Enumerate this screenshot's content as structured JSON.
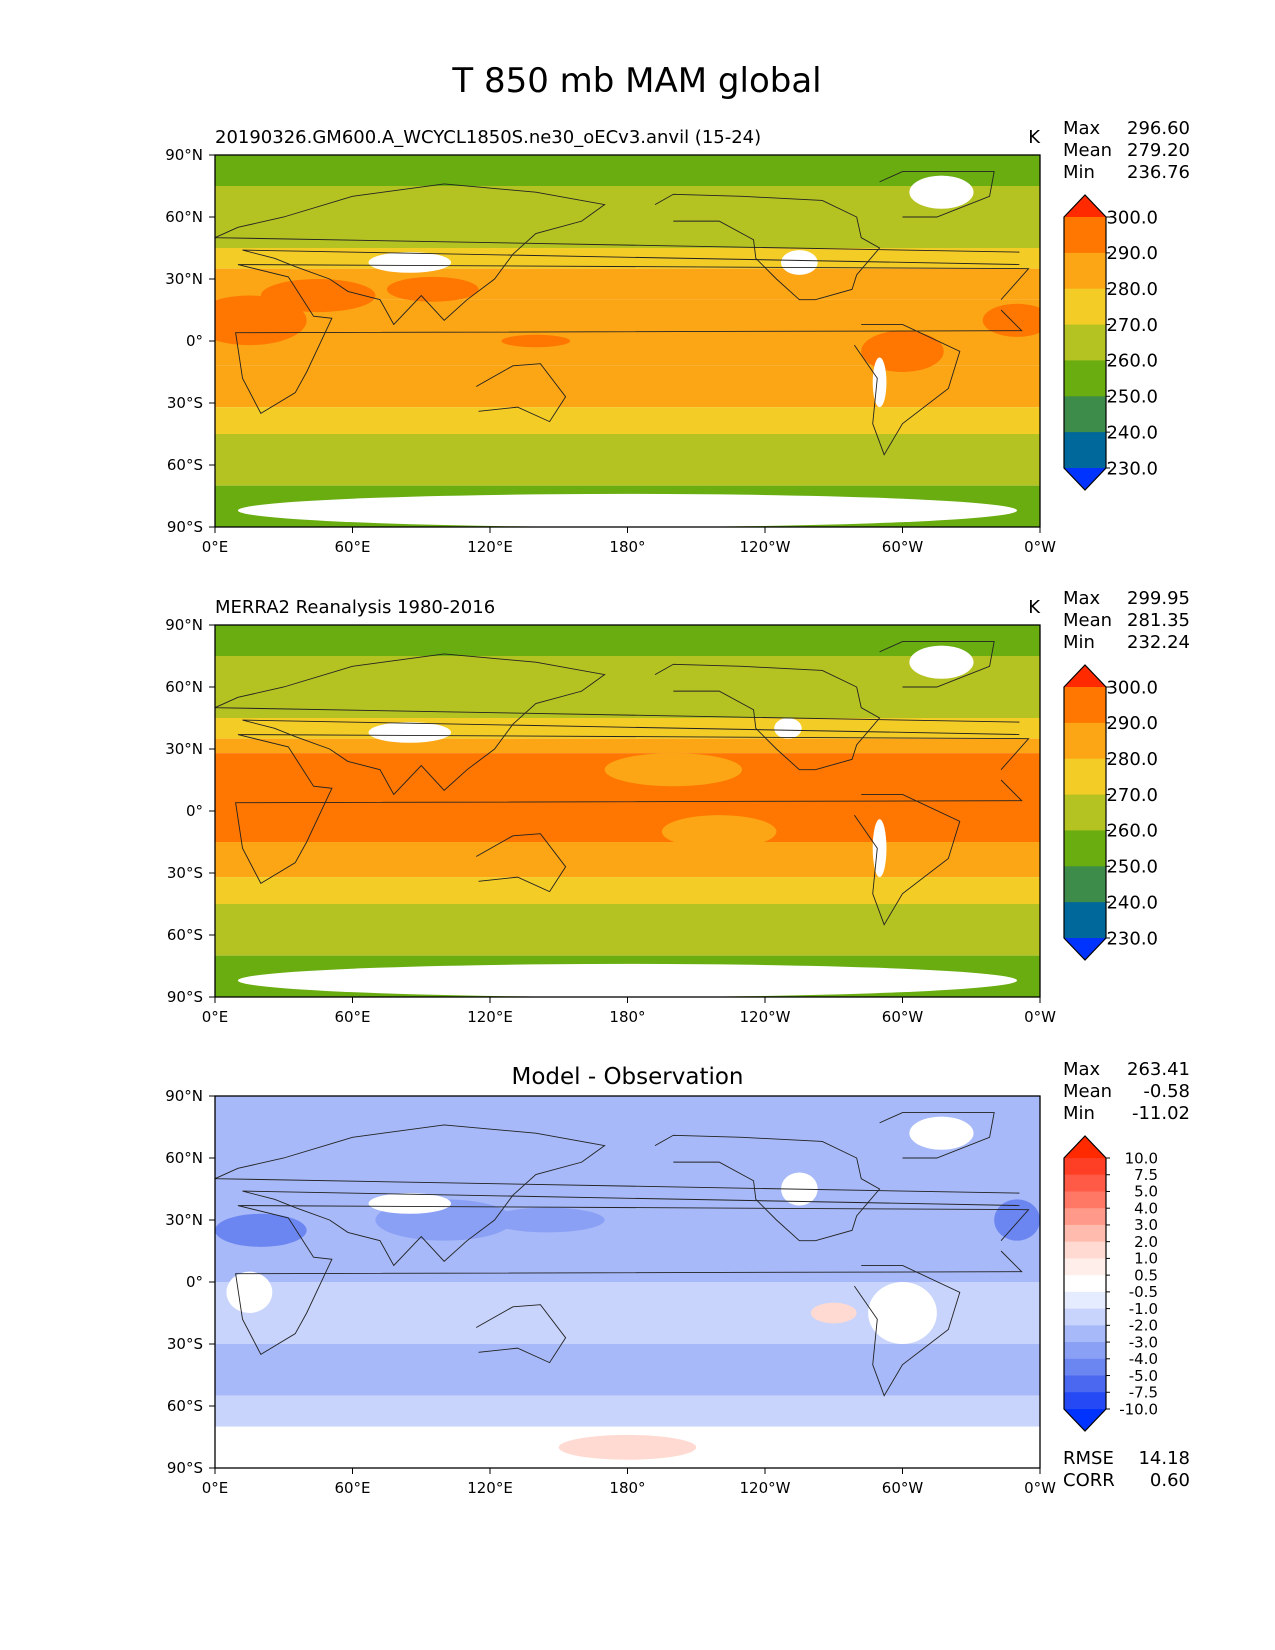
{
  "figure_title": "T 850 mb MAM global",
  "chart_data": [
    {
      "type": "heatmap",
      "title": "20190326.GM600.A_WCYCL1850S.ne30_oECv3.anvil (15-24)",
      "units": "K",
      "stats": [
        {
          "label": "Max",
          "value": "296.60"
        },
        {
          "label": "Mean",
          "value": "279.20"
        },
        {
          "label": "Min",
          "value": "236.76"
        }
      ],
      "colorbar": {
        "levels": [
          "300.0",
          "290.0",
          "280.0",
          "270.0",
          "260.0",
          "250.0",
          "240.0",
          "230.0"
        ],
        "colors": [
          "#ff2a00",
          "#ff7700",
          "#fca615",
          "#f4cc26",
          "#b4c222",
          "#69ad10",
          "#3d8c49",
          "#00689a",
          "#0033ff"
        ]
      },
      "xticks": [
        "0°E",
        "60°E",
        "120°E",
        "180°",
        "120°W",
        "60°W",
        "0°W"
      ],
      "yticks": [
        "90°N",
        "60°N",
        "30°N",
        "0°",
        "30°S",
        "60°S",
        "90°S"
      ],
      "bands": [
        {
          "lat": [
            90,
            75
          ],
          "color": "#69ad10"
        },
        {
          "lat": [
            75,
            60
          ],
          "color": "#b4c222"
        },
        {
          "lat": [
            60,
            45
          ],
          "color": "#b4c222"
        },
        {
          "lat": [
            45,
            35
          ],
          "color": "#f4cc26"
        },
        {
          "lat": [
            35,
            20
          ],
          "color": "#fca615"
        },
        {
          "lat": [
            20,
            -12
          ],
          "color": "#fca615"
        },
        {
          "lat": [
            -12,
            -32
          ],
          "color": "#fca615"
        },
        {
          "lat": [
            -32,
            -45
          ],
          "color": "#f4cc26"
        },
        {
          "lat": [
            -45,
            -60
          ],
          "color": "#b4c222"
        },
        {
          "lat": [
            -60,
            -70
          ],
          "color": "#b4c222"
        },
        {
          "lat": [
            -70,
            -90
          ],
          "color": "#69ad10"
        }
      ],
      "blobs": [
        {
          "lon": 15,
          "lat": 10,
          "rx": 25,
          "ry": 12,
          "color": "#ff7700"
        },
        {
          "lon": 45,
          "lat": 22,
          "rx": 25,
          "ry": 8,
          "color": "#ff7700"
        },
        {
          "lon": 95,
          "lat": 25,
          "rx": 20,
          "ry": 6,
          "color": "#ff7700"
        },
        {
          "lon": 300,
          "lat": -5,
          "rx": 18,
          "ry": 10,
          "color": "#ff7700"
        },
        {
          "lon": 350,
          "lat": 10,
          "rx": 15,
          "ry": 8,
          "color": "#ff7700"
        },
        {
          "lon": 140,
          "lat": 0,
          "rx": 15,
          "ry": 3,
          "color": "#ff7700"
        },
        {
          "lon": 85,
          "lat": 38,
          "rx": 18,
          "ry": 5,
          "color": "#ffffff"
        },
        {
          "lon": 255,
          "lat": 38,
          "rx": 8,
          "ry": 6,
          "color": "#ffffff"
        },
        {
          "lon": 317,
          "lat": 72,
          "rx": 14,
          "ry": 8,
          "color": "#ffffff"
        },
        {
          "lon": 290,
          "lat": -20,
          "rx": 3,
          "ry": 12,
          "color": "#ffffff"
        },
        {
          "lon": 180,
          "lat": -82,
          "rx": 170,
          "ry": 8,
          "color": "#ffffff"
        }
      ]
    },
    {
      "type": "heatmap",
      "title": "MERRA2 Reanalysis 1980-2016",
      "units": "K",
      "stats": [
        {
          "label": "Max",
          "value": "299.95"
        },
        {
          "label": "Mean",
          "value": "281.35"
        },
        {
          "label": "Min",
          "value": "232.24"
        }
      ],
      "colorbar": {
        "levels": [
          "300.0",
          "290.0",
          "280.0",
          "270.0",
          "260.0",
          "250.0",
          "240.0",
          "230.0"
        ],
        "colors": [
          "#ff2a00",
          "#ff7700",
          "#fca615",
          "#f4cc26",
          "#b4c222",
          "#69ad10",
          "#3d8c49",
          "#00689a",
          "#0033ff"
        ]
      },
      "xticks": [
        "0°E",
        "60°E",
        "120°E",
        "180°",
        "120°W",
        "60°W",
        "0°W"
      ],
      "yticks": [
        "90°N",
        "60°N",
        "30°N",
        "0°",
        "30°S",
        "60°S",
        "90°S"
      ],
      "bands": [
        {
          "lat": [
            90,
            75
          ],
          "color": "#69ad10"
        },
        {
          "lat": [
            75,
            60
          ],
          "color": "#b4c222"
        },
        {
          "lat": [
            60,
            45
          ],
          "color": "#b4c222"
        },
        {
          "lat": [
            45,
            35
          ],
          "color": "#f4cc26"
        },
        {
          "lat": [
            35,
            28
          ],
          "color": "#fca615"
        },
        {
          "lat": [
            28,
            -15
          ],
          "color": "#ff7700"
        },
        {
          "lat": [
            -15,
            -32
          ],
          "color": "#fca615"
        },
        {
          "lat": [
            -32,
            -45
          ],
          "color": "#f4cc26"
        },
        {
          "lat": [
            -45,
            -60
          ],
          "color": "#b4c222"
        },
        {
          "lat": [
            -60,
            -70
          ],
          "color": "#b4c222"
        },
        {
          "lat": [
            -70,
            -90
          ],
          "color": "#69ad10"
        }
      ],
      "blobs": [
        {
          "lon": 200,
          "lat": 20,
          "rx": 30,
          "ry": 8,
          "color": "#fca615"
        },
        {
          "lon": 220,
          "lat": -10,
          "rx": 25,
          "ry": 8,
          "color": "#fca615"
        },
        {
          "lon": 85,
          "lat": 38,
          "rx": 18,
          "ry": 5,
          "color": "#ffffff"
        },
        {
          "lon": 250,
          "lat": 40,
          "rx": 6,
          "ry": 5,
          "color": "#ffffff"
        },
        {
          "lon": 317,
          "lat": 72,
          "rx": 14,
          "ry": 8,
          "color": "#ffffff"
        },
        {
          "lon": 290,
          "lat": -18,
          "rx": 3,
          "ry": 14,
          "color": "#ffffff"
        },
        {
          "lon": 180,
          "lat": -82,
          "rx": 170,
          "ry": 8,
          "color": "#ffffff"
        }
      ]
    },
    {
      "type": "heatmap",
      "title": "Model - Observation",
      "units": "",
      "stats": [
        {
          "label": "Max",
          "value": "263.41"
        },
        {
          "label": "Mean",
          "value": "-0.58"
        },
        {
          "label": "Min",
          "value": "-11.02"
        }
      ],
      "colorbar": {
        "levels": [
          "10.0",
          "7.5",
          "5.0",
          "4.0",
          "3.0",
          "2.0",
          "1.0",
          "0.5",
          "-0.5",
          "-1.0",
          "-2.0",
          "-3.0",
          "-4.0",
          "-5.0",
          "-7.5",
          "-10.0"
        ],
        "colors": [
          "#ff2a00",
          "#ff3f25",
          "#ff5a46",
          "#ff7866",
          "#ff9a8a",
          "#ffbcae",
          "#ffdad2",
          "#ffeeea",
          "#ffffff",
          "#e6ecff",
          "#c8d4fc",
          "#a7b9f8",
          "#8aa0f5",
          "#6b85f1",
          "#4a68f0",
          "#2449f5",
          "#0033ff"
        ]
      },
      "xticks": [
        "0°E",
        "60°E",
        "120°E",
        "180°",
        "120°W",
        "60°W",
        "0°W"
      ],
      "yticks": [
        "90°N",
        "60°N",
        "30°N",
        "0°",
        "30°S",
        "60°S",
        "90°S"
      ],
      "bands": [
        {
          "lat": [
            90,
            60
          ],
          "color": "#a7b9f8"
        },
        {
          "lat": [
            60,
            30
          ],
          "color": "#a7b9f8"
        },
        {
          "lat": [
            30,
            0
          ],
          "color": "#a7b9f8"
        },
        {
          "lat": [
            0,
            -30
          ],
          "color": "#c8d4fc"
        },
        {
          "lat": [
            -30,
            -55
          ],
          "color": "#a7b9f8"
        },
        {
          "lat": [
            -55,
            -70
          ],
          "color": "#c8d4fc"
        },
        {
          "lat": [
            -70,
            -90
          ],
          "color": "#ffffff"
        }
      ],
      "blobs": [
        {
          "lon": 100,
          "lat": 30,
          "rx": 30,
          "ry": 10,
          "color": "#8aa0f5"
        },
        {
          "lon": 20,
          "lat": 25,
          "rx": 20,
          "ry": 8,
          "color": "#6b85f1"
        },
        {
          "lon": 350,
          "lat": 30,
          "rx": 10,
          "ry": 10,
          "color": "#6b85f1"
        },
        {
          "lon": 145,
          "lat": 30,
          "rx": 25,
          "ry": 6,
          "color": "#8aa0f5"
        },
        {
          "lon": 300,
          "lat": -15,
          "rx": 15,
          "ry": 15,
          "color": "#ffffff"
        },
        {
          "lon": 270,
          "lat": -15,
          "rx": 10,
          "ry": 5,
          "color": "#ffdad2"
        },
        {
          "lon": 15,
          "lat": -5,
          "rx": 10,
          "ry": 10,
          "color": "#ffffff"
        },
        {
          "lon": 85,
          "lat": 38,
          "rx": 18,
          "ry": 5,
          "color": "#ffffff"
        },
        {
          "lon": 255,
          "lat": 45,
          "rx": 8,
          "ry": 8,
          "color": "#ffffff"
        },
        {
          "lon": 317,
          "lat": 72,
          "rx": 14,
          "ry": 8,
          "color": "#ffffff"
        },
        {
          "lon": 180,
          "lat": -80,
          "rx": 30,
          "ry": 6,
          "color": "#ffdad2"
        }
      ],
      "extra": [
        {
          "label": "RMSE",
          "value": "14.18"
        },
        {
          "label": "CORR",
          "value": "0.60"
        }
      ]
    }
  ]
}
